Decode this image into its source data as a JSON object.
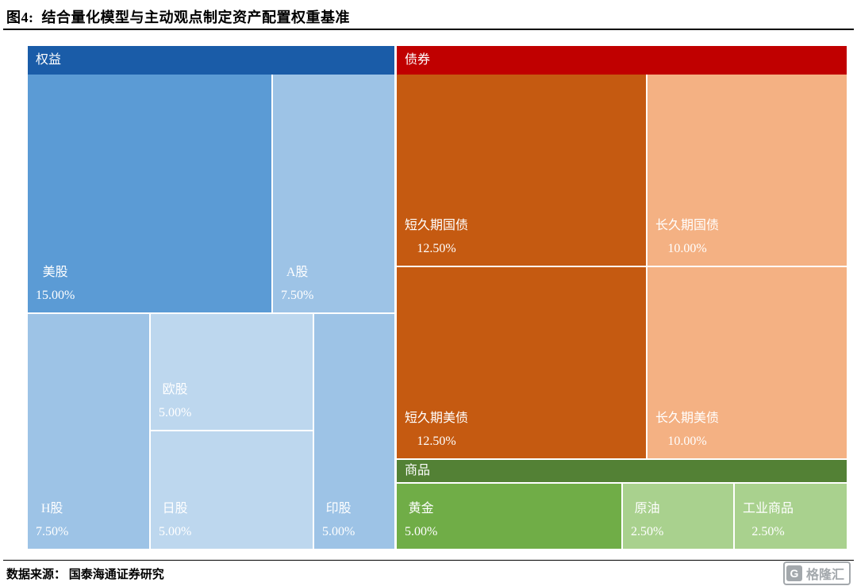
{
  "title": "图4:  结合量化模型与主动观点制定资产配置权重基准",
  "source": "数据来源： 国泰海通证券研究",
  "watermark": {
    "icon": "G",
    "text": "格隆汇"
  },
  "chart_data": {
    "type": "treemap",
    "title": "结合量化模型与主动观点制定资产配置权重基准",
    "unit": "%",
    "groups": [
      {
        "name": "权益",
        "total": 45.0,
        "header_color": "#1A5CA8",
        "children": [
          {
            "name": "美股",
            "value": 15.0,
            "label": "15.00%",
            "color": "#5B9BD5"
          },
          {
            "name": "A股",
            "value": 7.5,
            "label": "7.50%",
            "color": "#9DC3E6"
          },
          {
            "name": "H股",
            "value": 7.5,
            "label": "7.50%",
            "color": "#9DC3E6"
          },
          {
            "name": "欧股",
            "value": 5.0,
            "label": "5.00%",
            "color": "#BDD7EE"
          },
          {
            "name": "日股",
            "value": 5.0,
            "label": "5.00%",
            "color": "#BDD7EE"
          },
          {
            "name": "印股",
            "value": 5.0,
            "label": "5.00%",
            "color": "#9DC3E6"
          }
        ]
      },
      {
        "name": "债券",
        "total": 45.0,
        "header_color": "#C00000",
        "children": [
          {
            "name": "短久期国债",
            "value": 12.5,
            "label": "12.50%",
            "color": "#C55A11"
          },
          {
            "name": "长久期国债",
            "value": 10.0,
            "label": "10.00%",
            "color": "#F4B183"
          },
          {
            "name": "短久期美债",
            "value": 12.5,
            "label": "12.50%",
            "color": "#C55A11"
          },
          {
            "name": "长久期美债",
            "value": 10.0,
            "label": "10.00%",
            "color": "#F4B183"
          }
        ]
      },
      {
        "name": "商品",
        "total": 10.0,
        "header_color": "#538135",
        "children": [
          {
            "name": "黄金",
            "value": 5.0,
            "label": "5.00%",
            "color": "#70AD47"
          },
          {
            "name": "原油",
            "value": 2.5,
            "label": "2.50%",
            "color": "#A9D18E"
          },
          {
            "name": "工业商品",
            "value": 2.5,
            "label": "2.50%",
            "color": "#A9D18E"
          }
        ]
      }
    ]
  }
}
